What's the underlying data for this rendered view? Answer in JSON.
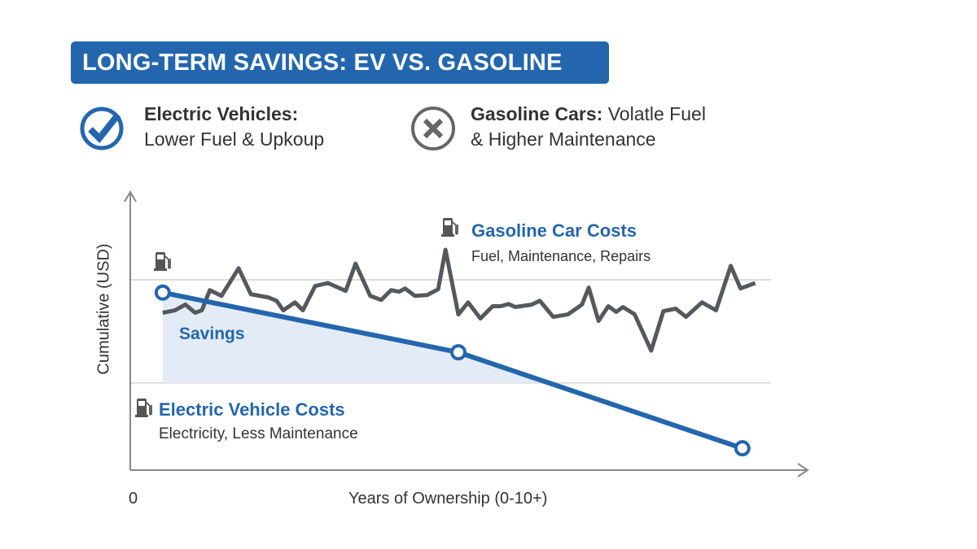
{
  "header": {
    "title": "LONG-TERM SAVINGS: EV VS. GASOLINE"
  },
  "features": [
    {
      "icon": "check-circle-icon",
      "bold": "Electric Vehicles:",
      "line1_rest": "",
      "line2": "Lower Fuel & Upkoup",
      "color": "#2466ad"
    },
    {
      "icon": "x-circle-icon",
      "bold": "Gasoline Cars:",
      "line1_rest": " Volatle Fuel",
      "line2": "& Higher Maintenance",
      "color": "#666666"
    }
  ],
  "colors": {
    "ev": "#2466ad",
    "gas": "#55585c",
    "savings_fill": "#e3ebf6",
    "axis": "#888888",
    "grid": "#dddddd"
  },
  "chart_data": {
    "type": "line",
    "xlabel": "Years of Ownership (0-10+)",
    "ylabel": "Cumulative (USD)",
    "x_tick_labels": [
      "0"
    ],
    "xlim": [
      0,
      11
    ],
    "ylim": [
      0,
      102
    ],
    "grid": "horizontal",
    "gridlines_y": [
      32,
      69.8
    ],
    "series": [
      {
        "name": "Gasoline Car Costs",
        "subtitle": "Fuel, Maintenance, Repairs",
        "icon": "fuel-pump-icon",
        "color": "#55585c",
        "points": [
          [
            0.53,
            57.7
          ],
          [
            0.73,
            58.6
          ],
          [
            0.9,
            60.7
          ],
          [
            1.06,
            57.7
          ],
          [
            1.17,
            58.6
          ],
          [
            1.3,
            66
          ],
          [
            1.49,
            63.9
          ],
          [
            1.77,
            74
          ],
          [
            1.97,
            64.5
          ],
          [
            2.26,
            63.3
          ],
          [
            2.39,
            62.1
          ],
          [
            2.5,
            58.6
          ],
          [
            2.69,
            61.5
          ],
          [
            2.82,
            58.6
          ],
          [
            3.02,
            67.5
          ],
          [
            3.23,
            68.6
          ],
          [
            3.52,
            65.7
          ],
          [
            3.68,
            75.7
          ],
          [
            3.92,
            63.9
          ],
          [
            4.1,
            62.4
          ],
          [
            4.26,
            66
          ],
          [
            4.39,
            65.4
          ],
          [
            4.49,
            66.6
          ],
          [
            4.65,
            63.9
          ],
          [
            4.85,
            64.2
          ],
          [
            5.03,
            66.3
          ],
          [
            5.15,
            80.8
          ],
          [
            5.36,
            57.1
          ],
          [
            5.52,
            61.5
          ],
          [
            5.72,
            55.6
          ],
          [
            5.92,
            60.1
          ],
          [
            6.05,
            60.1
          ],
          [
            6.18,
            60.9
          ],
          [
            6.29,
            59.8
          ],
          [
            6.56,
            60.7
          ],
          [
            6.69,
            62.1
          ],
          [
            6.91,
            56.2
          ],
          [
            7.15,
            57.1
          ],
          [
            7.38,
            60.7
          ],
          [
            7.49,
            66.9
          ],
          [
            7.65,
            54.7
          ],
          [
            7.81,
            60.1
          ],
          [
            7.94,
            58
          ],
          [
            8.05,
            59.8
          ],
          [
            8.24,
            57.1
          ],
          [
            8.51,
            43.8
          ],
          [
            8.71,
            58.3
          ],
          [
            8.91,
            59.2
          ],
          [
            9.08,
            56.2
          ],
          [
            9.34,
            61.5
          ],
          [
            9.57,
            58.6
          ],
          [
            9.81,
            74.9
          ],
          [
            9.97,
            66.6
          ],
          [
            10.21,
            68.6
          ]
        ]
      },
      {
        "name": "Electric Vehicle Costs",
        "subtitle": "Electricity, Less Maintenance",
        "icon": "fuel-pump-icon",
        "color": "#2466ad",
        "points": [
          [
            0.53,
            65.1
          ],
          [
            5.36,
            43.2
          ],
          [
            10,
            8
          ]
        ]
      }
    ],
    "annotations": [
      {
        "text": "Savings",
        "color": "#2466ad"
      }
    ]
  }
}
